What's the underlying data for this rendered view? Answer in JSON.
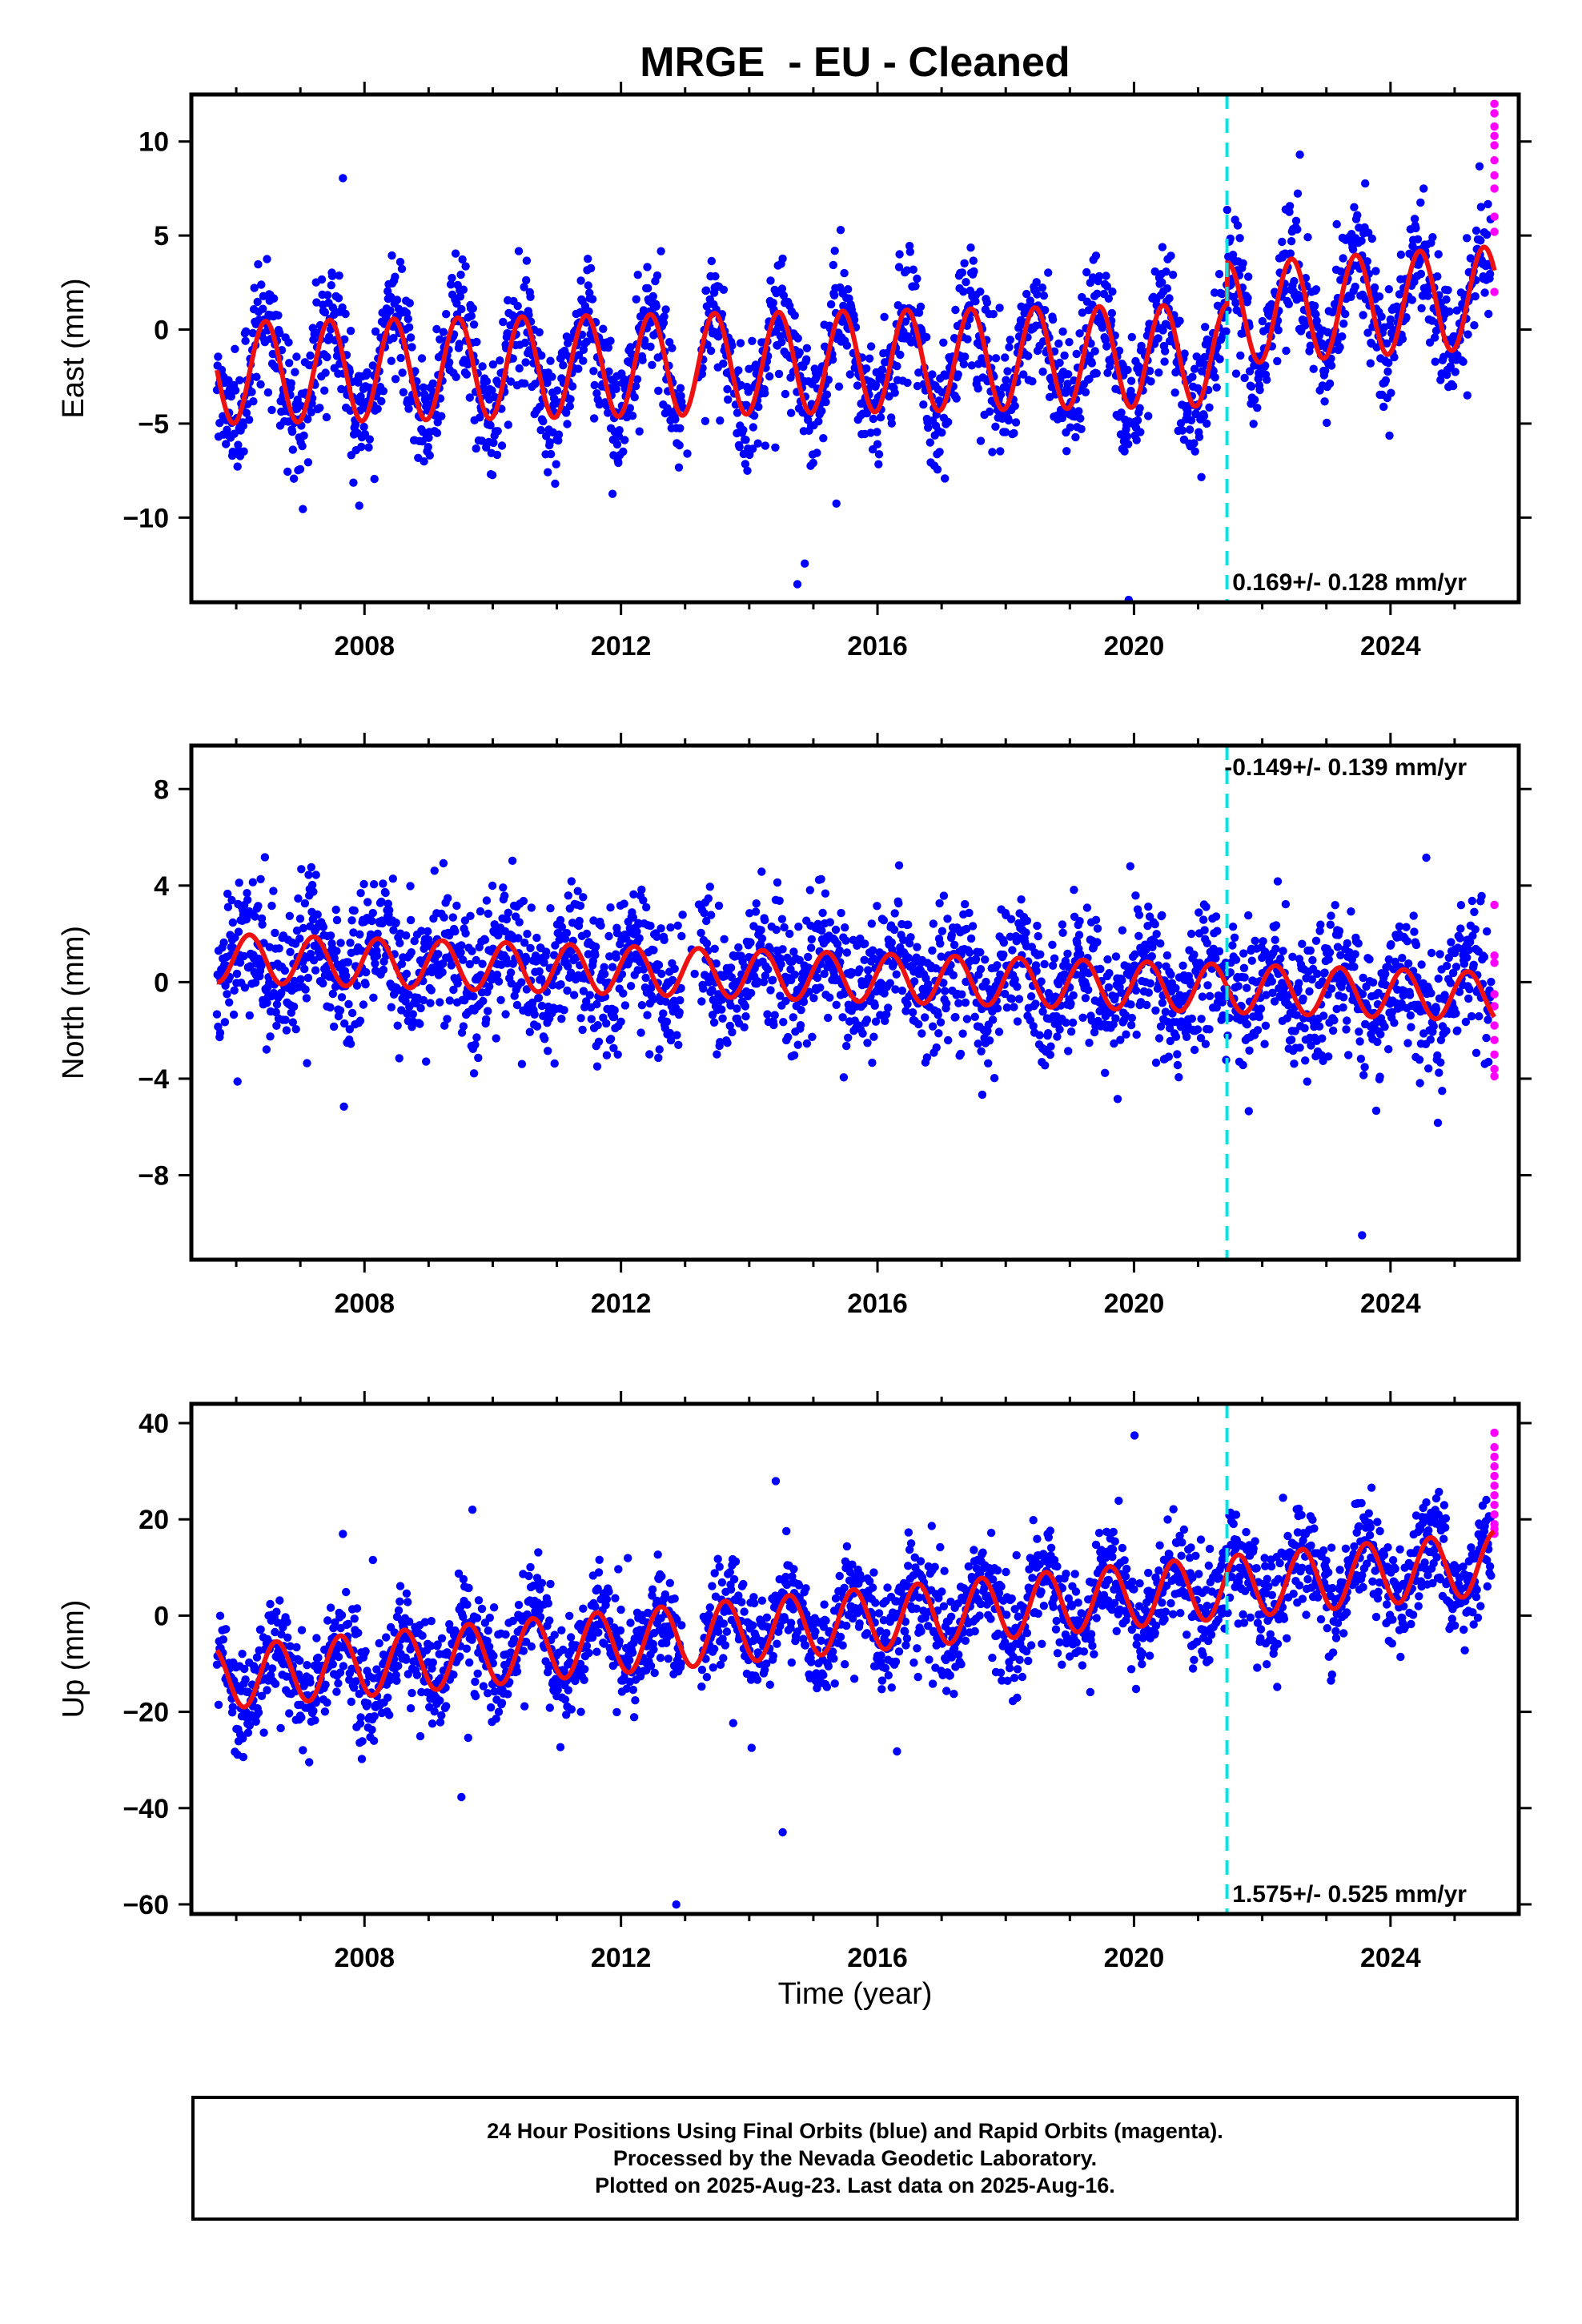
{
  "title": "MRGE  - EU - Cleaned",
  "x_axis_label": "Time (year)",
  "footer": {
    "line1": "24 Hour Positions Using Final Orbits (blue) and Rapid Orbits (magenta).",
    "line2": "Processed by the Nevada Geodetic Laboratory.",
    "line3": "Plotted on 2025-Aug-23. Last data on 2025-Aug-16."
  },
  "colors": {
    "final_orbits": "#0000ff",
    "rapid_orbits": "#ff00ff",
    "model_fit": "#ee1111",
    "event_line": "#00e5e5"
  },
  "chart_data": [
    {
      "type": "scatter",
      "component": "east",
      "ylabel": "East (mm)",
      "rate_label": "0.169+/- 0.128 mm/yr",
      "rate_position": "bottom-right",
      "xlim": [
        2005.3,
        2026.0
      ],
      "ylim": [
        -14.5,
        12.5
      ],
      "xticks": [
        2008,
        2012,
        2016,
        2020,
        2024
      ],
      "yticks": [
        -10,
        -5,
        0,
        5,
        10
      ],
      "event_line_x": 2021.45,
      "model": {
        "start": 2005.7,
        "end": 2025.62,
        "base": -2.3,
        "base_trend_per_year": 0.06,
        "step_year": 2021.45,
        "step_size": 2.2,
        "post_step_trend_per_year": 0.15,
        "annual_amplitude": 2.7,
        "annual_phase_peak_month": 6
      },
      "noise_sd": 1.6,
      "rapid_orbit_values": [
        12.0,
        11.5,
        10.8,
        10.3,
        9.8,
        9.0,
        8.2,
        7.5,
        6.0,
        5.2,
        2.0
      ]
    },
    {
      "type": "scatter",
      "component": "north",
      "ylabel": "North (mm)",
      "rate_label": "-0.149+/- 0.139 mm/yr",
      "rate_position": "top-right",
      "xlim": [
        2005.3,
        2026.0
      ],
      "ylim": [
        -11.5,
        9.8
      ],
      "xticks": [
        2008,
        2012,
        2016,
        2020,
        2024
      ],
      "yticks": [
        -8,
        -4,
        0,
        4,
        8
      ],
      "event_line_x": 2021.45,
      "model": {
        "start": 2005.7,
        "end": 2025.62,
        "base": 1.0,
        "base_trend_per_year": -0.08,
        "step_year": 2021.45,
        "step_size": 0.0,
        "post_step_trend_per_year": 0.0,
        "annual_amplitude": 1.0,
        "annual_phase_peak_month": 3
      },
      "noise_sd": 1.4,
      "rapid_orbit_values": [
        3.2,
        1.1,
        0.8,
        -0.5,
        -1.0,
        -1.8,
        -2.4,
        -3.0,
        -3.6,
        -3.9
      ]
    },
    {
      "type": "scatter",
      "component": "up",
      "ylabel": "Up (mm)",
      "rate_label": "1.575+/- 0.525 mm/yr",
      "rate_position": "bottom-right",
      "xlim": [
        2005.3,
        2026.0
      ],
      "ylim": [
        -62,
        44
      ],
      "xticks": [
        2008,
        2012,
        2016,
        2020,
        2024
      ],
      "yticks": [
        -60,
        -40,
        -20,
        0,
        20,
        40
      ],
      "event_line_x": 2021.45,
      "model": {
        "start": 2005.7,
        "end": 2025.62,
        "base": -13.0,
        "base_trend_per_year": 1.2,
        "step_year": 2021.45,
        "step_size": 0.0,
        "post_step_trend_per_year": 0.0,
        "annual_amplitude": 6.5,
        "annual_phase_peak_month": 8
      },
      "noise_sd": 5.5,
      "rapid_orbit_values": [
        38.0,
        35.0,
        33.0,
        31.0,
        29.0,
        27.0,
        25.0,
        23.0,
        21.0,
        19.0,
        18.0,
        17.0
      ]
    }
  ]
}
